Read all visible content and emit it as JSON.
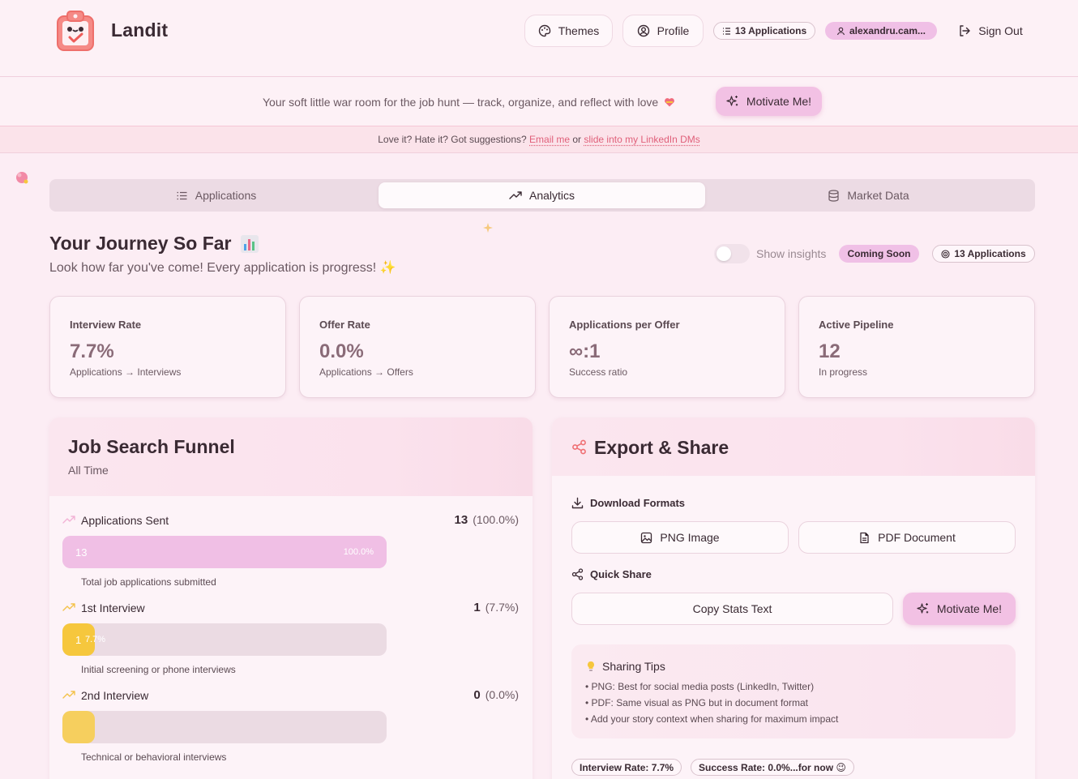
{
  "header": {
    "brand": "Landit",
    "themes_label": "Themes",
    "profile_label": "Profile",
    "applications_badge": "13 Applications",
    "user_badge": "alexandru.cam...",
    "signout_label": "Sign Out"
  },
  "tagline": {
    "text": "Your soft little war room for the job hunt — track, organize, and reflect with love",
    "motivate_label": "Motivate Me!"
  },
  "feedback": {
    "prefix": "Love it? Hate it? Got suggestions?",
    "email_link": "Email me",
    "middle": "or",
    "linkedin_link": "slide into my LinkedIn DMs"
  },
  "tabs": [
    {
      "label": "Applications",
      "icon": "list-icon"
    },
    {
      "label": "Analytics",
      "icon": "trending-up-icon",
      "active": true
    },
    {
      "label": "Market Data",
      "icon": "database-icon"
    }
  ],
  "journey": {
    "title": "Your Journey So Far",
    "subtitle": "Look how far you've come! Every application is progress! ✨",
    "insights_label": "Show insights",
    "coming_soon": "Coming Soon",
    "applications_badge": "13 Applications"
  },
  "cards": [
    {
      "label": "Interview Rate",
      "value": "7.7%",
      "desc": "Applications → Interviews"
    },
    {
      "label": "Offer Rate",
      "value": "0.0%",
      "desc": "Applications → Offers"
    },
    {
      "label": "Applications per Offer",
      "value": "∞:1",
      "desc": "Success ratio"
    },
    {
      "label": "Active Pipeline",
      "value": "12",
      "desc": "In progress"
    }
  ],
  "funnel": {
    "title": "Job Search Funnel",
    "subtitle": "All Time",
    "stages": [
      {
        "name": "Applications Sent",
        "count": "13",
        "pct": "(100.0%)",
        "bar_num": "13",
        "bar_pct": "100.0%",
        "fill": 1.0,
        "color": "#f0bfe5",
        "desc": "Total job applications submitted"
      },
      {
        "name": "1st Interview",
        "count": "1",
        "pct": "(7.7%)",
        "bar_num": "1",
        "bar_pct": "7.7%",
        "fill": 0.1,
        "color": "#f6c73d",
        "desc": "Initial screening or phone interviews"
      },
      {
        "name": "2nd Interview",
        "count": "0",
        "pct": "(0.0%)",
        "bar_num": "",
        "bar_pct": "",
        "fill": 0.1,
        "color": "#f6cf5e",
        "desc": "Technical or behavioral interviews"
      }
    ]
  },
  "export": {
    "title": "Export & Share",
    "download_label": "Download Formats",
    "png_label": "PNG Image",
    "pdf_label": "PDF Document",
    "quick_share_label": "Quick Share",
    "copy_label": "Copy Stats Text",
    "motivate_label": "Motivate Me!",
    "tips_title": "Sharing Tips",
    "tips": [
      "• PNG: Best for social media posts (LinkedIn, Twitter)",
      "• PDF: Same visual as PNG but in document format",
      "• Add your story context when sharing for maximum impact"
    ],
    "stat_interview": "Interview Rate: 7.7%",
    "stat_success": "Success Rate: 0.0%...for now 😉"
  }
}
